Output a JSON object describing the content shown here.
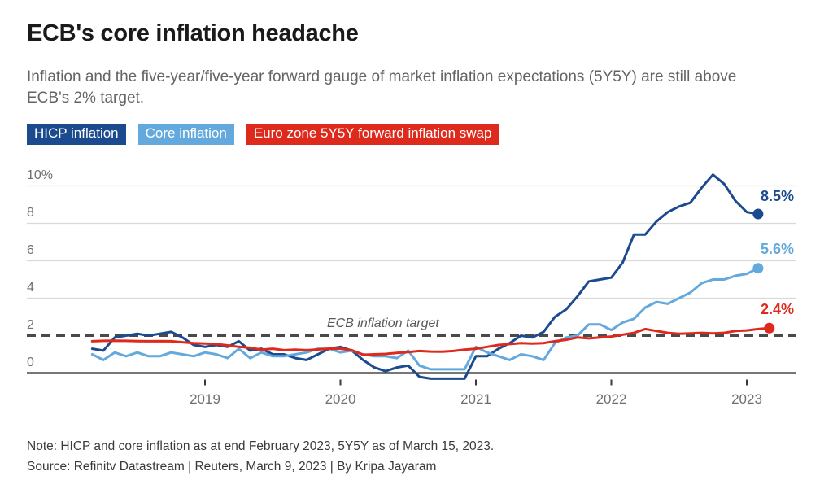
{
  "header": {
    "title": "ECB's core inflation headache",
    "subtitle": "Inflation and the five-year/five-year forward gauge of market inflation expectations (5Y5Y) are still above ECB's 2% target."
  },
  "footer": {
    "note": "Note: HICP and core inflation as at end February 2023, 5Y5Y as of March 15, 2023.",
    "source": "Source: Refinitv Datastream | Reuters, March 9, 2023 | By Kripa Jayaram"
  },
  "colors": {
    "navy": "#1c4a8e",
    "light_blue": "#63a9dd",
    "red": "#de2a1c",
    "gridline": "#d9d9d9",
    "axis_line": "#4a4a4a",
    "axis_text": "#6f6f6f"
  },
  "chart_data": {
    "type": "line",
    "unit": "%",
    "grid": "horizontal",
    "legend_position": "top",
    "x_axis": {
      "ticks": [
        2019,
        2020,
        2021,
        2022,
        2023
      ]
    },
    "y_axis": {
      "range": [
        -0.5,
        11
      ],
      "ticks": [
        {
          "label": "10%",
          "value": 10
        },
        {
          "label": "8",
          "value": 8
        },
        {
          "label": "6",
          "value": 6
        },
        {
          "label": "4",
          "value": 4
        },
        {
          "label": "2",
          "value": 2
        },
        {
          "label": "0",
          "value": 0
        }
      ],
      "gridline_values": [
        10,
        8,
        6,
        4
      ]
    },
    "target_line": {
      "value": 2,
      "label": "ECB inflation target",
      "color": "#4a4a4a",
      "style": "dashed"
    },
    "series": [
      {
        "label": "HICP inflation",
        "color": "#1c4a8e",
        "start": "2018-03",
        "frequency": "monthly",
        "end_label": "8.5%",
        "end_value": 8.5,
        "values": [
          1.3,
          1.2,
          1.9,
          2.0,
          2.1,
          2.0,
          2.1,
          2.2,
          1.9,
          1.5,
          1.4,
          1.5,
          1.4,
          1.7,
          1.2,
          1.3,
          1.0,
          1.0,
          0.8,
          0.7,
          1.0,
          1.3,
          1.4,
          1.2,
          0.7,
          0.3,
          0.1,
          0.3,
          0.4,
          -0.2,
          -0.3,
          -0.3,
          -0.3,
          -0.3,
          0.9,
          0.9,
          1.3,
          1.6,
          2.0,
          1.9,
          2.2,
          3.0,
          3.4,
          4.1,
          4.9,
          5.0,
          5.1,
          5.9,
          7.4,
          7.4,
          8.1,
          8.6,
          8.9,
          9.1,
          9.9,
          10.6,
          10.1,
          9.2,
          8.6,
          8.5
        ]
      },
      {
        "label": "Core inflation",
        "color": "#63a9dd",
        "start": "2018-03",
        "frequency": "monthly",
        "end_label": "5.6%",
        "end_value": 5.6,
        "values": [
          1.0,
          0.7,
          1.1,
          0.9,
          1.1,
          0.9,
          0.9,
          1.1,
          1.0,
          0.9,
          1.1,
          1.0,
          0.8,
          1.3,
          0.8,
          1.1,
          0.9,
          0.9,
          1.0,
          1.1,
          1.3,
          1.3,
          1.1,
          1.2,
          1.0,
          0.9,
          0.9,
          0.8,
          1.2,
          0.4,
          0.2,
          0.2,
          0.2,
          0.2,
          1.4,
          1.1,
          0.9,
          0.7,
          1.0,
          0.9,
          0.7,
          1.6,
          1.9,
          2.0,
          2.6,
          2.6,
          2.3,
          2.7,
          2.9,
          3.5,
          3.8,
          3.7,
          4.0,
          4.3,
          4.8,
          5.0,
          5.0,
          5.2,
          5.3,
          5.6
        ]
      },
      {
        "label": "Euro zone 5Y5Y forward inflation swap",
        "color": "#de2a1c",
        "start": "2018-03",
        "frequency": "monthly",
        "end_label": "2.4%",
        "end_value": 2.4,
        "values": [
          1.7,
          1.72,
          1.73,
          1.72,
          1.71,
          1.7,
          1.71,
          1.7,
          1.65,
          1.6,
          1.58,
          1.55,
          1.48,
          1.4,
          1.35,
          1.25,
          1.3,
          1.22,
          1.25,
          1.22,
          1.26,
          1.3,
          1.3,
          1.22,
          0.98,
          1.0,
          1.02,
          1.08,
          1.12,
          1.18,
          1.15,
          1.14,
          1.18,
          1.25,
          1.3,
          1.4,
          1.5,
          1.55,
          1.6,
          1.58,
          1.6,
          1.7,
          1.78,
          1.9,
          1.85,
          1.9,
          1.95,
          2.05,
          2.15,
          2.35,
          2.25,
          2.15,
          2.1,
          2.12,
          2.15,
          2.12,
          2.15,
          2.25,
          2.28,
          2.35,
          2.4
        ]
      }
    ]
  }
}
